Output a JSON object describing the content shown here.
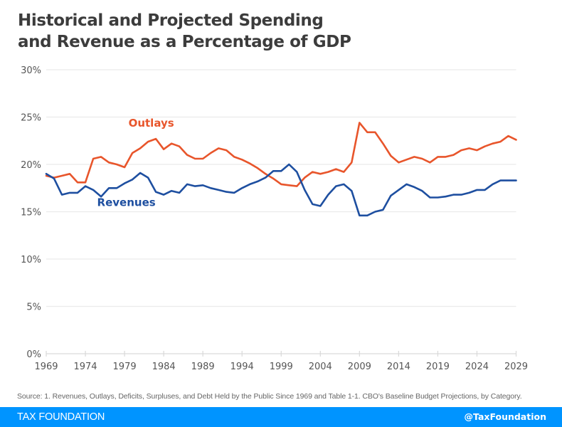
{
  "title_lines": [
    "Historical and Projected Spending",
    "and Revenue as a Percentage of GDP"
  ],
  "source": "Source: 1. Revenues, Outlays, Deficits, Surpluses, and Debt Held by the Public Since 1969 and Table 1-1. CBO's Baseline Budget Projections, by Category.",
  "footer": {
    "brand": "TAX FOUNDATION",
    "handle": "@TaxFoundation",
    "color": "#0094ff"
  },
  "chart_data": {
    "type": "line",
    "title": "Historical and Projected Spending and Revenue as a Percentage of GDP",
    "xlabel": "",
    "ylabel": "",
    "xlim": [
      1969,
      2029
    ],
    "ylim": [
      0,
      30
    ],
    "x_ticks": [
      1969,
      1974,
      1979,
      1984,
      1989,
      1994,
      1999,
      2004,
      2009,
      2014,
      2019,
      2024,
      2029
    ],
    "x_tick_labels": [
      "1969",
      "1974",
      "1979",
      "1984",
      "1989",
      "1994",
      "1999",
      "2004",
      "2009",
      "2014",
      "2019",
      "2024",
      "2029"
    ],
    "y_ticks": [
      0,
      5,
      10,
      15,
      20,
      25,
      30
    ],
    "y_tick_labels": [
      "0%",
      "5%",
      "10%",
      "15%",
      "20%",
      "25%",
      "30%"
    ],
    "grid": "horizontal",
    "legend": "inline labels",
    "x": [
      1969,
      1970,
      1971,
      1972,
      1973,
      1974,
      1975,
      1976,
      1977,
      1978,
      1979,
      1980,
      1981,
      1982,
      1983,
      1984,
      1985,
      1986,
      1987,
      1988,
      1989,
      1990,
      1991,
      1992,
      1993,
      1994,
      1995,
      1996,
      1997,
      1998,
      1999,
      2000,
      2001,
      2002,
      2003,
      2004,
      2005,
      2006,
      2007,
      2008,
      2009,
      2010,
      2011,
      2012,
      2013,
      2014,
      2015,
      2016,
      2017,
      2018,
      2019,
      2020,
      2021,
      2022,
      2023,
      2024,
      2025,
      2026,
      2027,
      2028,
      2029
    ],
    "series": [
      {
        "name": "Outlays",
        "color": "#e8552b",
        "label_anchor": {
          "x": 1979.5,
          "y": 24.0
        },
        "values": [
          18.8,
          18.6,
          18.8,
          19.0,
          18.1,
          18.1,
          20.6,
          20.8,
          20.2,
          20.0,
          19.7,
          21.2,
          21.7,
          22.4,
          22.7,
          21.6,
          22.2,
          21.9,
          21.0,
          20.6,
          20.6,
          21.2,
          21.7,
          21.5,
          20.8,
          20.5,
          20.1,
          19.6,
          19.0,
          18.5,
          17.9,
          17.8,
          17.7,
          18.6,
          19.2,
          19.0,
          19.2,
          19.5,
          19.2,
          20.2,
          24.4,
          23.4,
          23.4,
          22.2,
          20.9,
          20.2,
          20.5,
          20.8,
          20.6,
          20.2,
          20.8,
          20.8,
          21.0,
          21.5,
          21.7,
          21.5,
          21.9,
          22.2,
          22.4,
          23.0,
          22.6
        ]
      },
      {
        "name": "Revenues",
        "color": "#1e4fa0",
        "label_anchor": {
          "x": 1975.5,
          "y": 15.6
        },
        "values": [
          19.0,
          18.5,
          16.8,
          17.0,
          17.0,
          17.7,
          17.3,
          16.6,
          17.5,
          17.5,
          18.0,
          18.4,
          19.1,
          18.6,
          17.1,
          16.8,
          17.2,
          17.0,
          17.9,
          17.7,
          17.8,
          17.5,
          17.3,
          17.1,
          17.0,
          17.5,
          17.9,
          18.2,
          18.6,
          19.3,
          19.3,
          20.0,
          19.2,
          17.3,
          15.8,
          15.6,
          16.8,
          17.7,
          17.9,
          17.2,
          14.6,
          14.6,
          15.0,
          15.2,
          16.7,
          17.3,
          17.9,
          17.6,
          17.2,
          16.5,
          16.5,
          16.6,
          16.8,
          16.8,
          17.0,
          17.3,
          17.3,
          17.9,
          18.3,
          18.3,
          18.3
        ]
      }
    ]
  }
}
